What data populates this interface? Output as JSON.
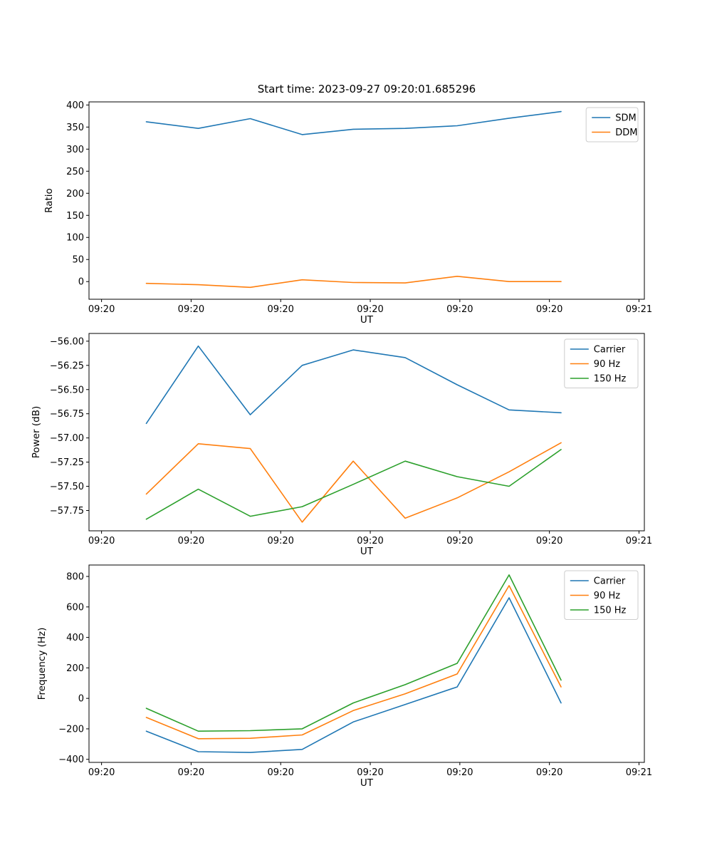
{
  "chart_data": [
    {
      "type": "line",
      "title": "Start time: 2023-09-27 09:20:01.685296",
      "xlabel": "UT",
      "ylabel": "Ratio",
      "xlim": [
        -1.4,
        60.6
      ],
      "ylim": [
        -40,
        407
      ],
      "xticks": [
        0,
        10,
        20,
        30,
        40,
        50,
        60
      ],
      "xtick_labels": [
        "09:20",
        "09:20",
        "09:20",
        "09:20",
        "09:20",
        "09:20",
        "09:21"
      ],
      "yticks": [
        0,
        50,
        100,
        150,
        200,
        250,
        300,
        350,
        400
      ],
      "ytick_labels": [
        "0",
        "50",
        "100",
        "150",
        "200",
        "250",
        "300",
        "350",
        "400"
      ],
      "grid": false,
      "legend_position": "upper right",
      "x_unit": "seconds after 09:20:00",
      "x": [
        5.0,
        10.8,
        16.6,
        22.4,
        28.1,
        33.9,
        39.7,
        45.5,
        51.3
      ],
      "series": [
        {
          "name": "SDM",
          "color": "#1f77b4",
          "values": [
            362,
            347,
            369,
            333,
            345,
            347,
            353,
            370,
            385
          ]
        },
        {
          "name": "DDM",
          "color": "#ff7f0e",
          "values": [
            -4,
            -7,
            -13,
            4,
            -2,
            -3,
            12,
            0,
            0
          ]
        }
      ]
    },
    {
      "type": "line",
      "xlabel": "UT",
      "ylabel": "Power (dB)",
      "xlim": [
        -1.4,
        60.6
      ],
      "ylim": [
        -57.96,
        -55.92
      ],
      "xticks": [
        0,
        10,
        20,
        30,
        40,
        50,
        60
      ],
      "xtick_labels": [
        "09:20",
        "09:20",
        "09:20",
        "09:20",
        "09:20",
        "09:20",
        "09:21"
      ],
      "yticks": [
        -57.75,
        -57.5,
        -57.25,
        -57.0,
        -56.75,
        -56.5,
        -56.25,
        -56.0
      ],
      "ytick_labels": [
        "−57.75",
        "−57.50",
        "−57.25",
        "−57.00",
        "−56.75",
        "−56.50",
        "−56.25",
        "−56.00"
      ],
      "grid": false,
      "legend_position": "upper right",
      "x_unit": "seconds after 09:20:00",
      "x": [
        5.0,
        10.8,
        16.6,
        22.4,
        28.1,
        33.9,
        39.7,
        45.5,
        51.3
      ],
      "series": [
        {
          "name": "Carrier",
          "color": "#1f77b4",
          "values": [
            -56.85,
            -56.05,
            -56.76,
            -56.25,
            -56.09,
            -56.17,
            -56.45,
            -56.71,
            -56.74
          ]
        },
        {
          "name": "90 Hz",
          "color": "#ff7f0e",
          "values": [
            -57.58,
            -57.06,
            -57.11,
            -57.87,
            -57.24,
            -57.83,
            -57.62,
            -57.35,
            -57.05
          ]
        },
        {
          "name": "150 Hz",
          "color": "#2ca02c",
          "values": [
            -57.84,
            -57.53,
            -57.81,
            -57.71,
            -57.48,
            -57.24,
            -57.4,
            -57.5,
            -57.12
          ]
        }
      ]
    },
    {
      "type": "line",
      "xlabel": "UT",
      "ylabel": "Frequency (Hz)",
      "xlim": [
        -1.4,
        60.6
      ],
      "ylim": [
        -420,
        875
      ],
      "xticks": [
        0,
        10,
        20,
        30,
        40,
        50,
        60
      ],
      "xtick_labels": [
        "09:20",
        "09:20",
        "09:20",
        "09:20",
        "09:20",
        "09:20",
        "09:21"
      ],
      "yticks": [
        -400,
        -200,
        0,
        200,
        400,
        600,
        800
      ],
      "ytick_labels": [
        "−400",
        "−200",
        "0",
        "200",
        "400",
        "600",
        "800"
      ],
      "grid": false,
      "legend_position": "upper right",
      "x_unit": "seconds after 09:20:00",
      "x": [
        5.0,
        10.8,
        16.6,
        22.4,
        28.1,
        33.9,
        39.7,
        45.5,
        51.3
      ],
      "series": [
        {
          "name": "Carrier",
          "color": "#1f77b4",
          "values": [
            -215,
            -350,
            -355,
            -335,
            -155,
            -40,
            75,
            660,
            -30
          ]
        },
        {
          "name": "90 Hz",
          "color": "#ff7f0e",
          "values": [
            -125,
            -265,
            -262,
            -240,
            -80,
            30,
            160,
            740,
            75
          ]
        },
        {
          "name": "150 Hz",
          "color": "#2ca02c",
          "values": [
            -65,
            -215,
            -212,
            -200,
            -30,
            90,
            230,
            810,
            120
          ]
        }
      ]
    }
  ]
}
